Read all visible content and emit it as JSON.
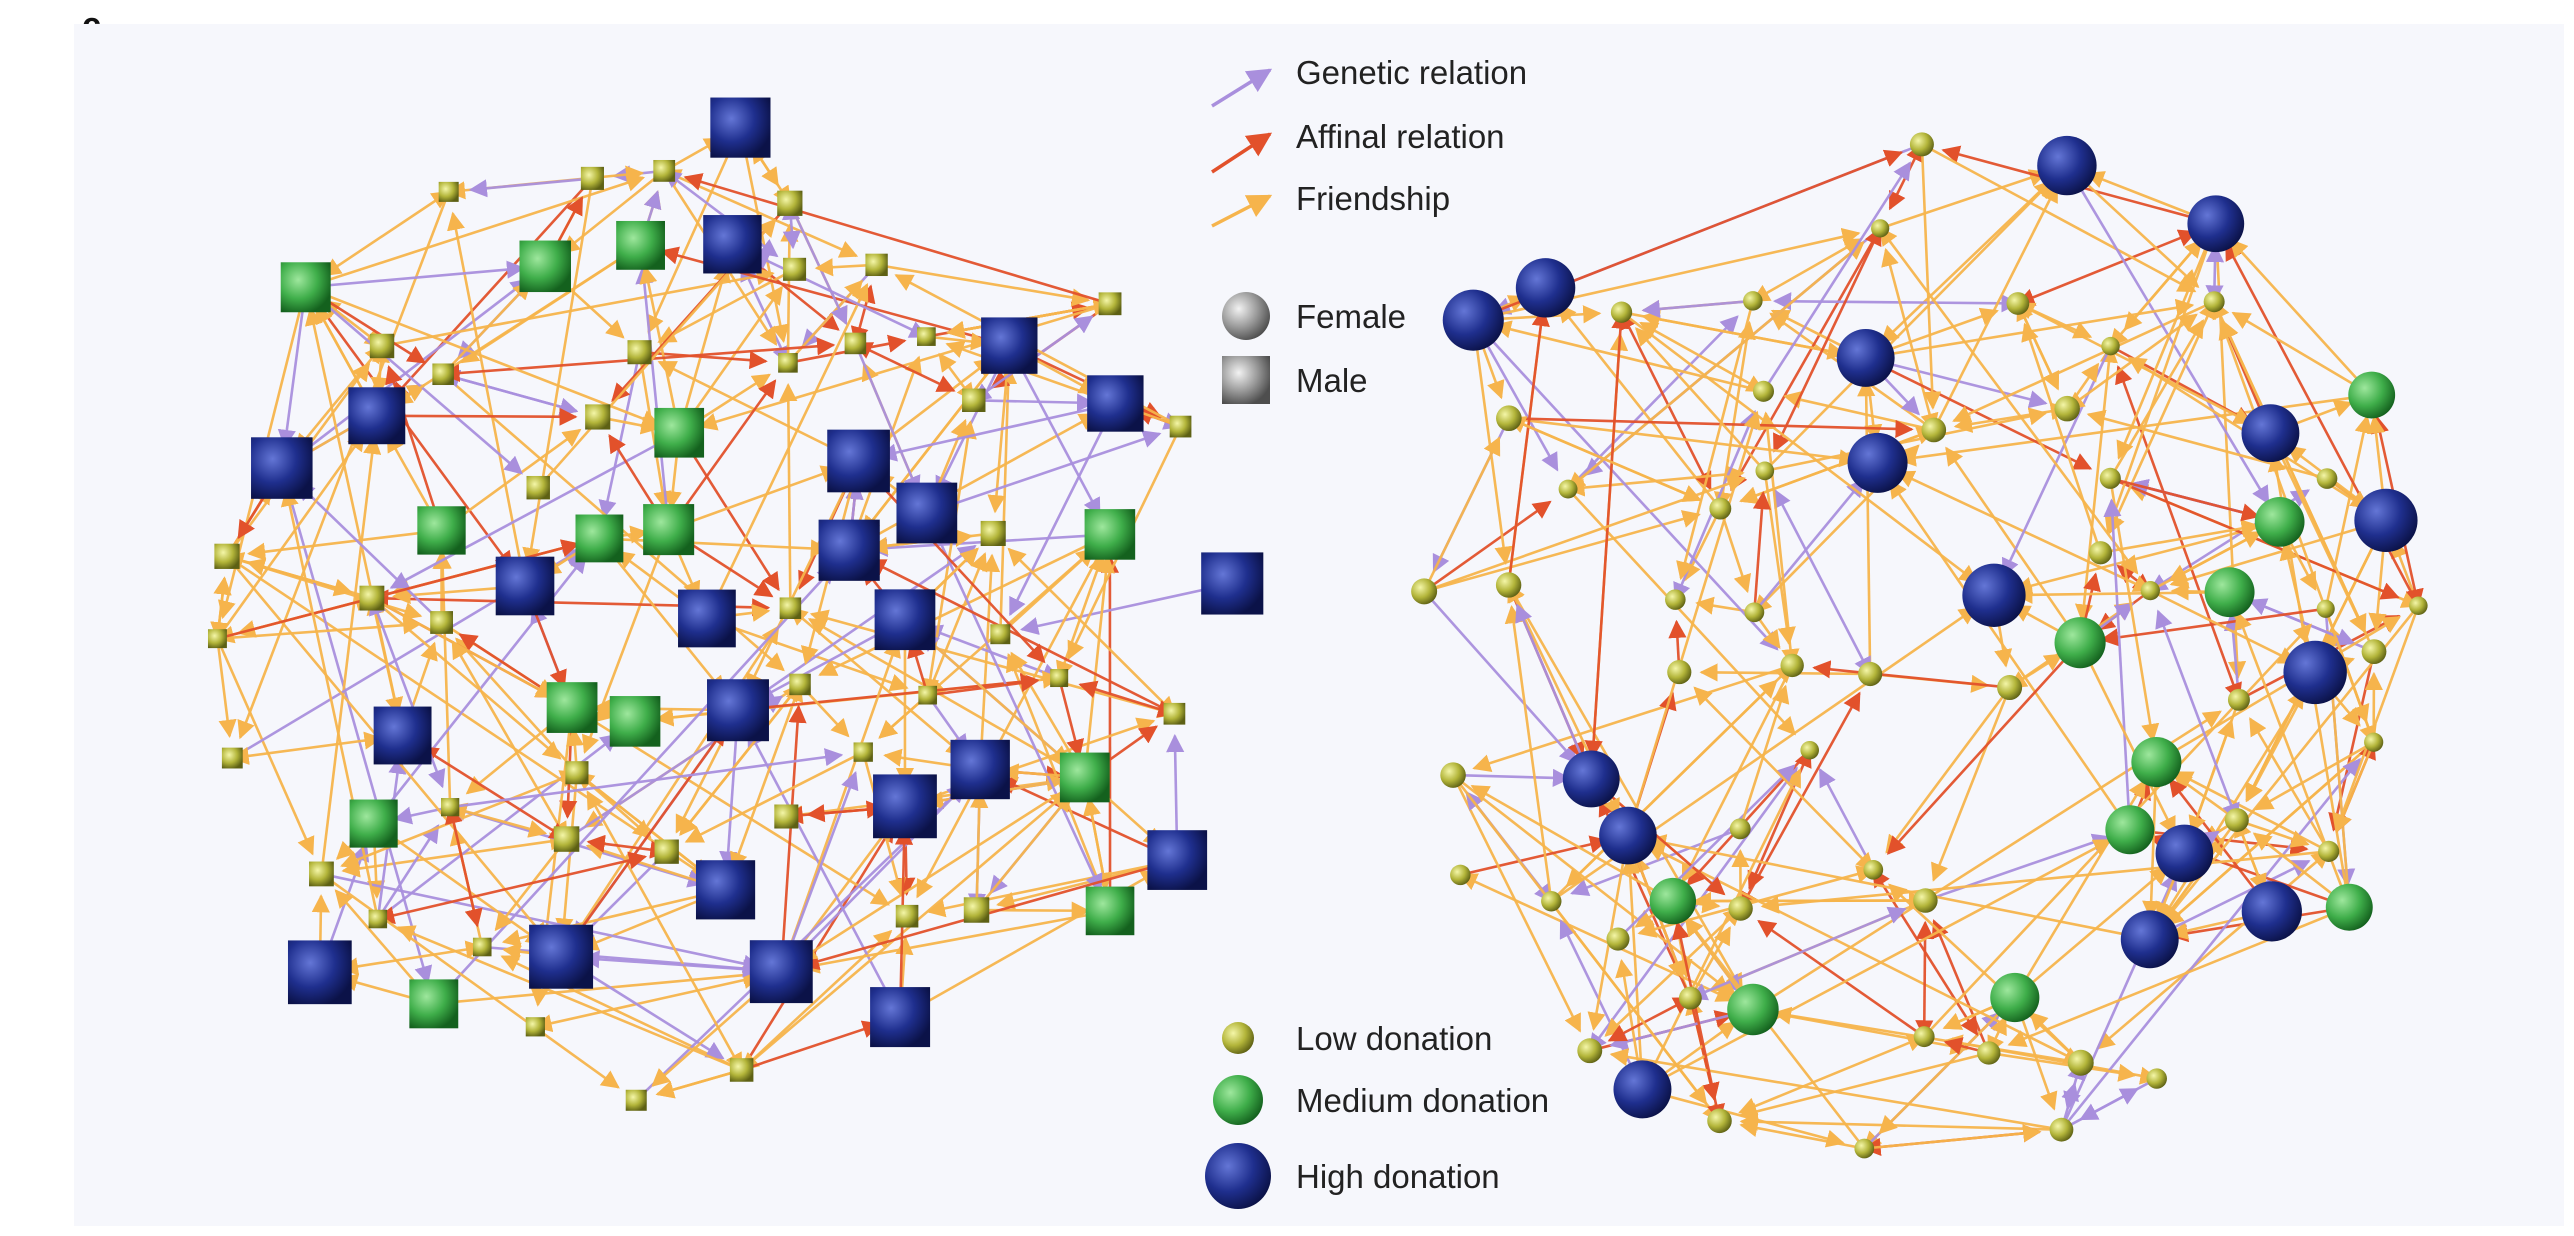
{
  "panel_label": "c",
  "colors": {
    "genetic": "#a98fdd",
    "affinal": "#e2512b",
    "friendship": "#f6b44c",
    "low": "#b2b43a",
    "medium": "#3fae4a",
    "high": "#1f2f8e",
    "background": "#f6f7fc"
  },
  "legend": {
    "edges": [
      {
        "type": "genetic",
        "label": "Genetic relation"
      },
      {
        "type": "affinal",
        "label": "Affinal relation"
      },
      {
        "type": "friendship",
        "label": "Friendship"
      }
    ],
    "shapes": [
      {
        "shape": "circle",
        "label": "Female"
      },
      {
        "shape": "square",
        "label": "Male"
      }
    ],
    "donation": [
      {
        "level": "low",
        "label": "Low donation"
      },
      {
        "level": "medium",
        "label": "Medium donation"
      },
      {
        "level": "high",
        "label": "High donation"
      }
    ]
  },
  "network": {
    "male": [
      {
        "id": "m1",
        "level": "medium"
      },
      {
        "id": "m2",
        "level": "low"
      },
      {
        "id": "m3",
        "level": "high"
      },
      {
        "id": "m4",
        "level": "high"
      },
      {
        "id": "m5",
        "level": "low"
      },
      {
        "id": "m6",
        "level": "low"
      },
      {
        "id": "m7",
        "level": "high"
      },
      {
        "id": "m8",
        "level": "medium"
      },
      {
        "id": "m9",
        "level": "low"
      },
      {
        "id": "m10",
        "level": "high"
      },
      {
        "id": "m11",
        "level": "high"
      },
      {
        "id": "m12",
        "level": "low"
      },
      {
        "id": "m13",
        "level": "low"
      },
      {
        "id": "m14",
        "level": "low"
      },
      {
        "id": "m15",
        "level": "high"
      },
      {
        "id": "m16",
        "level": "low"
      },
      {
        "id": "m17",
        "level": "medium"
      },
      {
        "id": "m18",
        "level": "low"
      },
      {
        "id": "m19",
        "level": "low"
      },
      {
        "id": "m20",
        "level": "high"
      },
      {
        "id": "m21",
        "level": "low"
      },
      {
        "id": "m22",
        "level": "low"
      },
      {
        "id": "m23",
        "level": "medium"
      },
      {
        "id": "m24",
        "level": "high"
      },
      {
        "id": "m25",
        "level": "low"
      },
      {
        "id": "m26",
        "level": "low"
      },
      {
        "id": "m27",
        "level": "high"
      },
      {
        "id": "m28",
        "level": "low"
      },
      {
        "id": "m29",
        "level": "high"
      },
      {
        "id": "m30",
        "level": "medium"
      },
      {
        "id": "m31",
        "level": "low"
      },
      {
        "id": "m32",
        "level": "low"
      },
      {
        "id": "m33",
        "level": "low"
      },
      {
        "id": "m34",
        "level": "low"
      },
      {
        "id": "m35",
        "level": "high"
      },
      {
        "id": "m36",
        "level": "low"
      },
      {
        "id": "m37",
        "level": "medium"
      },
      {
        "id": "m38",
        "level": "low"
      },
      {
        "id": "m39",
        "level": "low"
      },
      {
        "id": "m40",
        "level": "low"
      },
      {
        "id": "m41",
        "level": "high"
      },
      {
        "id": "m42",
        "level": "medium"
      },
      {
        "id": "m43",
        "level": "high"
      },
      {
        "id": "m44",
        "level": "low"
      },
      {
        "id": "m45",
        "level": "low"
      },
      {
        "id": "m46",
        "level": "medium"
      },
      {
        "id": "m47",
        "level": "low"
      },
      {
        "id": "m48",
        "level": "low"
      },
      {
        "id": "m49",
        "level": "high"
      },
      {
        "id": "m50",
        "level": "high"
      },
      {
        "id": "m51",
        "level": "high"
      },
      {
        "id": "m52",
        "level": "low"
      },
      {
        "id": "m53",
        "level": "low"
      },
      {
        "id": "m54",
        "level": "low"
      },
      {
        "id": "m55",
        "level": "high"
      },
      {
        "id": "m56",
        "level": "medium"
      },
      {
        "id": "m57",
        "level": "high"
      },
      {
        "id": "m58",
        "level": "low"
      },
      {
        "id": "m59",
        "level": "low"
      },
      {
        "id": "m60",
        "level": "low"
      },
      {
        "id": "m61",
        "level": "medium"
      },
      {
        "id": "m62",
        "level": "high"
      },
      {
        "id": "m63",
        "level": "medium"
      },
      {
        "id": "m64",
        "level": "medium"
      },
      {
        "id": "m65",
        "level": "medium"
      },
      {
        "id": "m66",
        "level": "low"
      },
      {
        "id": "m67",
        "level": "low"
      },
      {
        "id": "m68",
        "level": "low"
      },
      {
        "id": "m69",
        "level": "low"
      },
      {
        "id": "m70",
        "level": "high"
      },
      {
        "id": "m71",
        "level": "low"
      },
      {
        "id": "m72",
        "level": "low"
      },
      {
        "id": "m73",
        "level": "high"
      },
      {
        "id": "m74",
        "level": "low"
      },
      {
        "id": "m75",
        "level": "high"
      },
      {
        "id": "m76",
        "level": "low"
      },
      {
        "id": "m77",
        "level": "low"
      },
      {
        "id": "m78",
        "level": "low"
      },
      {
        "id": "m79",
        "level": "medium"
      },
      {
        "id": "m80",
        "level": "high"
      }
    ],
    "female": [
      {
        "id": "f1",
        "level": "medium"
      },
      {
        "id": "f2",
        "level": "low"
      },
      {
        "id": "f3",
        "level": "low"
      },
      {
        "id": "f4",
        "level": "low"
      },
      {
        "id": "f5",
        "level": "medium"
      },
      {
        "id": "f6",
        "level": "medium"
      },
      {
        "id": "f7",
        "level": "low"
      },
      {
        "id": "f8",
        "level": "low"
      },
      {
        "id": "f9",
        "level": "low"
      },
      {
        "id": "f10",
        "level": "low"
      },
      {
        "id": "f11",
        "level": "high"
      },
      {
        "id": "f12",
        "level": "low"
      },
      {
        "id": "f13",
        "level": "high"
      },
      {
        "id": "f14",
        "level": "high"
      },
      {
        "id": "f15",
        "level": "medium"
      },
      {
        "id": "f16",
        "level": "low"
      },
      {
        "id": "f17",
        "level": "low"
      },
      {
        "id": "f18",
        "level": "low"
      },
      {
        "id": "f19",
        "level": "high"
      },
      {
        "id": "f20",
        "level": "high"
      },
      {
        "id": "f21",
        "level": "low"
      },
      {
        "id": "f22",
        "level": "medium"
      },
      {
        "id": "f23",
        "level": "low"
      },
      {
        "id": "f24",
        "level": "low"
      },
      {
        "id": "f25",
        "level": "low"
      },
      {
        "id": "f26",
        "level": "low"
      },
      {
        "id": "f27",
        "level": "medium"
      },
      {
        "id": "f28",
        "level": "low"
      },
      {
        "id": "f29",
        "level": "low"
      },
      {
        "id": "f30",
        "level": "high"
      },
      {
        "id": "f31",
        "level": "high"
      },
      {
        "id": "f32",
        "level": "low"
      },
      {
        "id": "f33",
        "level": "low"
      },
      {
        "id": "f34",
        "level": "medium"
      },
      {
        "id": "f35",
        "level": "low"
      },
      {
        "id": "f36",
        "level": "low"
      },
      {
        "id": "f37",
        "level": "medium"
      },
      {
        "id": "f38",
        "level": "low"
      },
      {
        "id": "f39",
        "level": "low"
      },
      {
        "id": "f40",
        "level": "high"
      },
      {
        "id": "f41",
        "level": "low"
      },
      {
        "id": "f42",
        "level": "low"
      },
      {
        "id": "f43",
        "level": "medium"
      },
      {
        "id": "f44",
        "level": "low"
      },
      {
        "id": "f45",
        "level": "high"
      },
      {
        "id": "f46",
        "level": "low"
      },
      {
        "id": "f47",
        "level": "high"
      },
      {
        "id": "f48",
        "level": "low"
      },
      {
        "id": "f49",
        "level": "low"
      },
      {
        "id": "f50",
        "level": "low"
      },
      {
        "id": "f51",
        "level": "low"
      },
      {
        "id": "f52",
        "level": "low"
      },
      {
        "id": "f53",
        "level": "high"
      },
      {
        "id": "f54",
        "level": "high"
      },
      {
        "id": "f55",
        "level": "low"
      },
      {
        "id": "f56",
        "level": "low"
      },
      {
        "id": "f57",
        "level": "low"
      },
      {
        "id": "f58",
        "level": "low"
      },
      {
        "id": "f59",
        "level": "medium"
      },
      {
        "id": "f60",
        "level": "low"
      },
      {
        "id": "f61",
        "level": "high"
      },
      {
        "id": "f62",
        "level": "low"
      },
      {
        "id": "f63",
        "level": "high"
      },
      {
        "id": "f64",
        "level": "low"
      },
      {
        "id": "f65",
        "level": "high"
      },
      {
        "id": "f66",
        "level": "low"
      },
      {
        "id": "f67",
        "level": "low"
      },
      {
        "id": "f68",
        "level": "low"
      },
      {
        "id": "f69",
        "level": "high"
      },
      {
        "id": "f70",
        "level": "low"
      },
      {
        "id": "f71",
        "level": "low"
      },
      {
        "id": "f72",
        "level": "low"
      },
      {
        "id": "f73",
        "level": "low"
      },
      {
        "id": "f74",
        "level": "low"
      },
      {
        "id": "f75",
        "level": "low"
      },
      {
        "id": "f76",
        "level": "low"
      },
      {
        "id": "f77",
        "level": "low"
      }
    ]
  }
}
